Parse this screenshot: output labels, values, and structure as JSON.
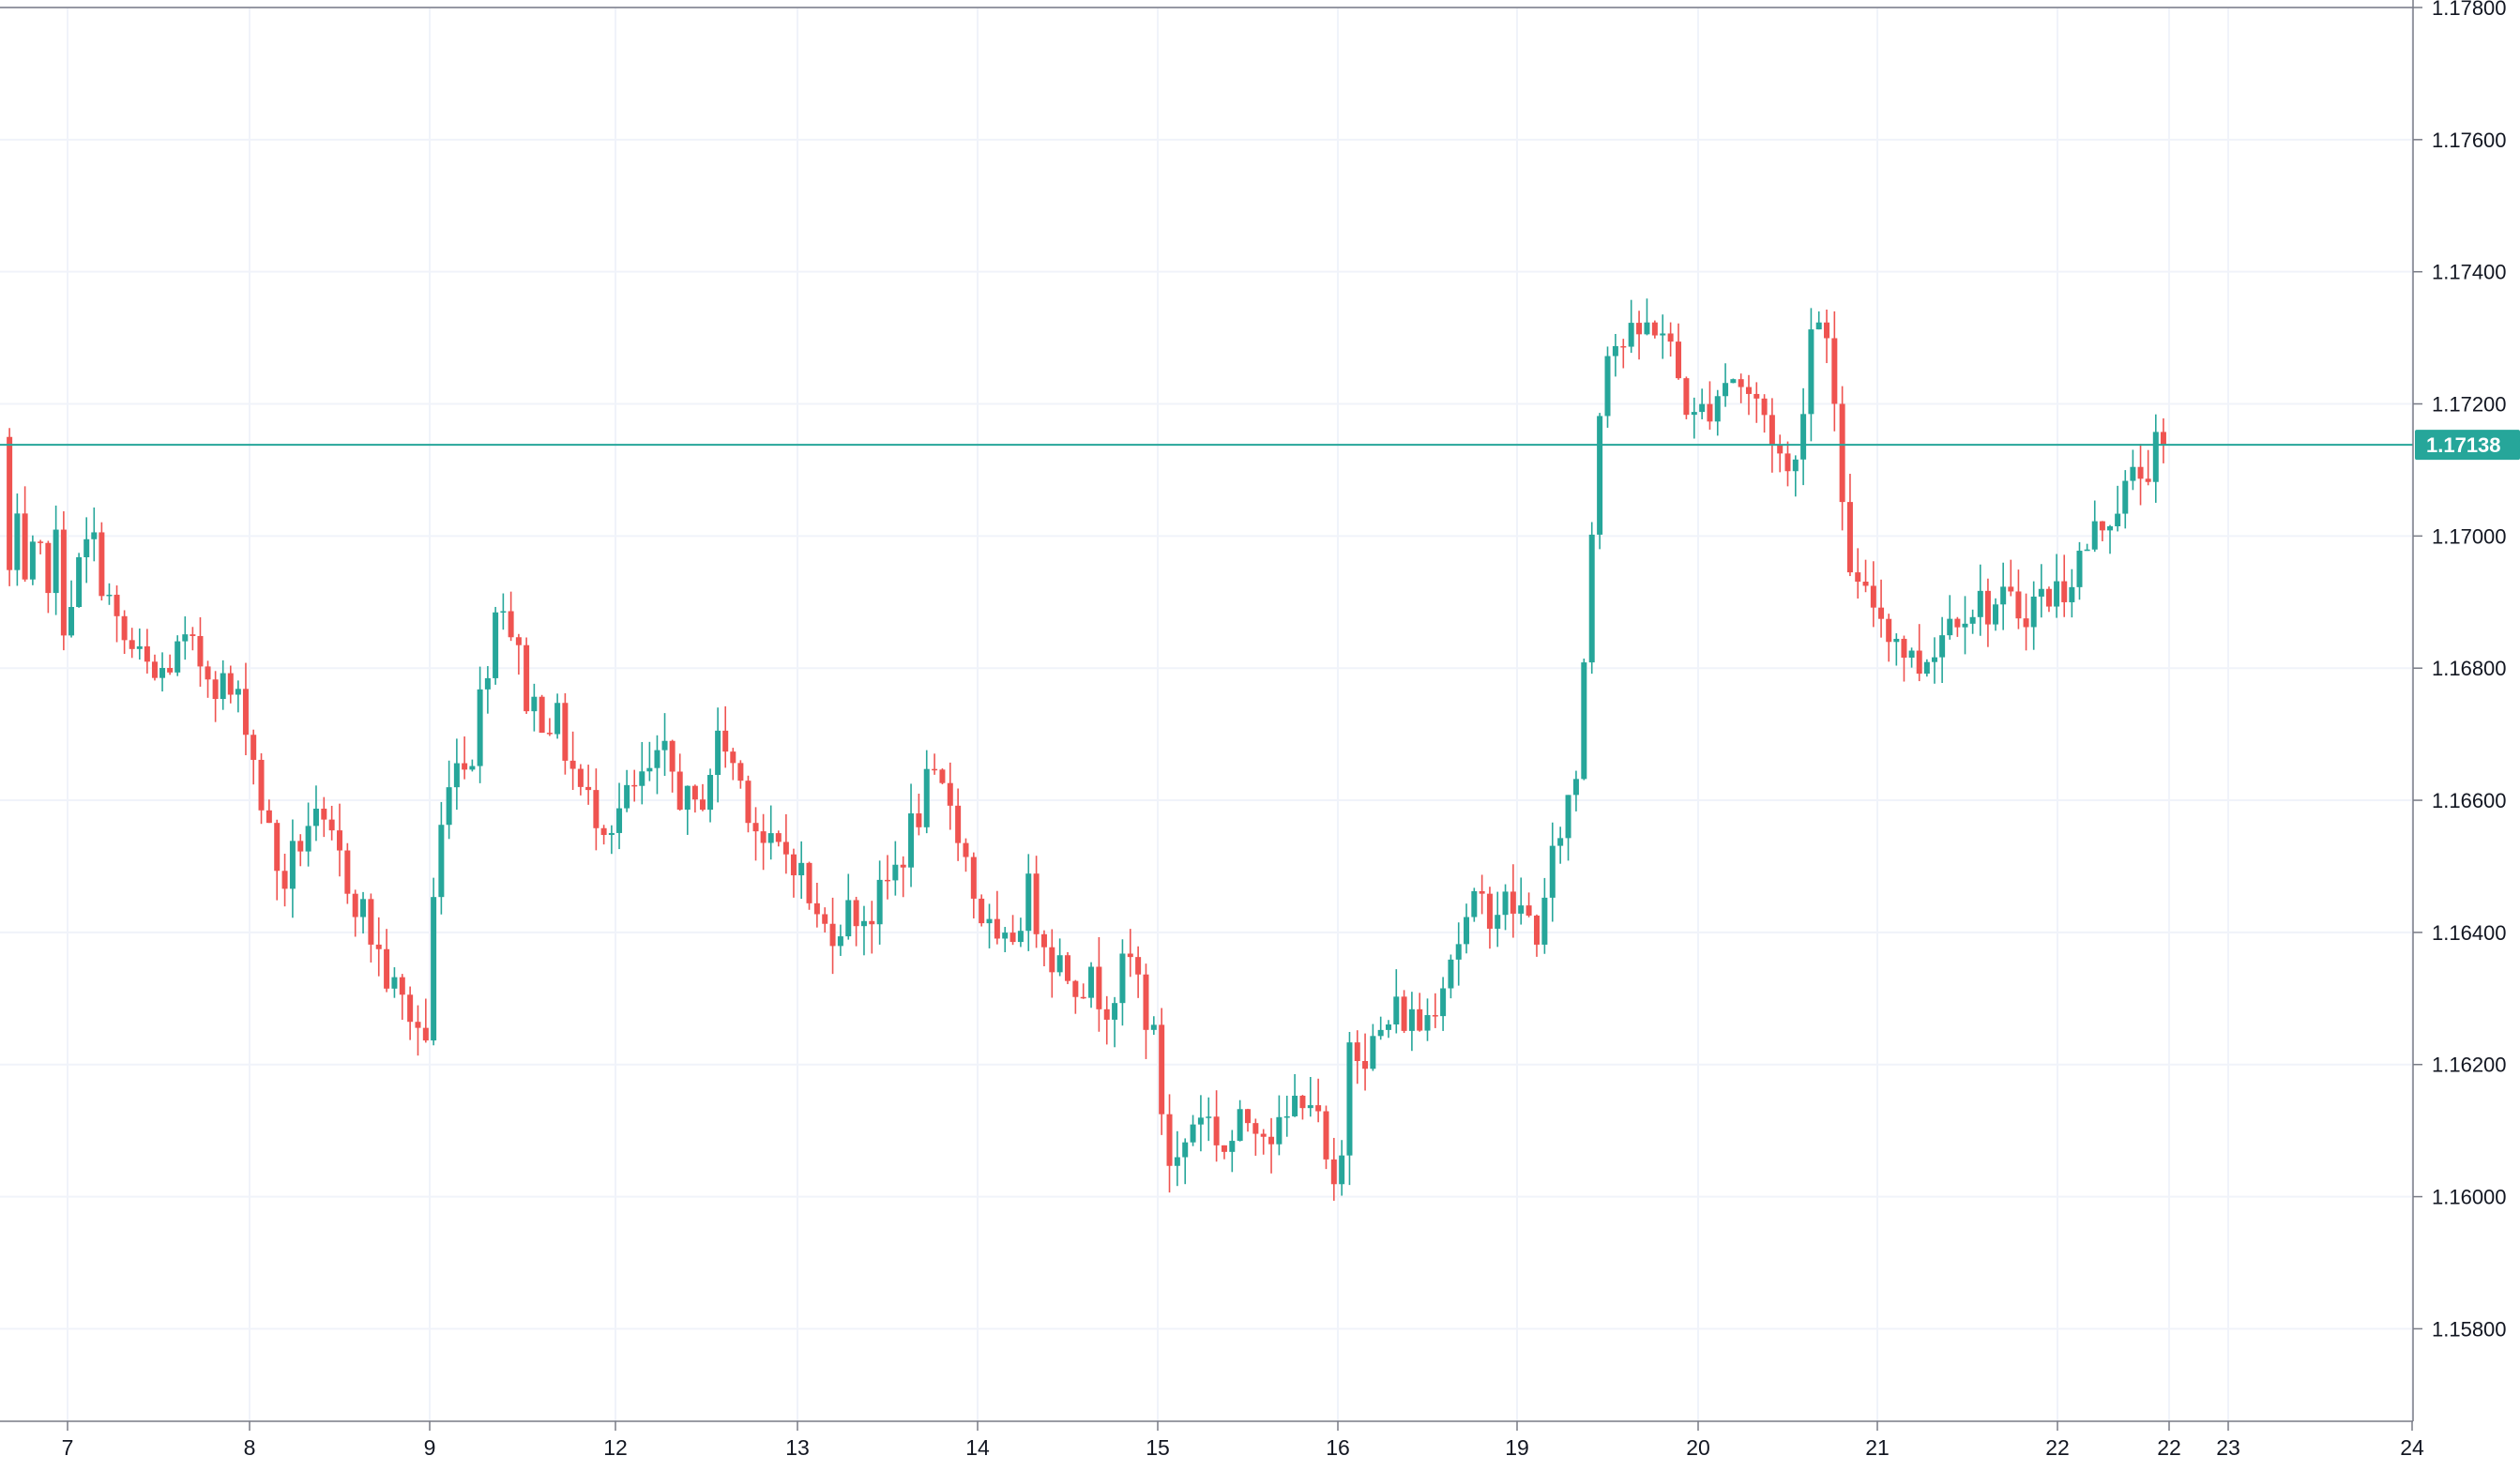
{
  "chart_data": {
    "type": "candlestick",
    "price_axis": {
      "ticks": [
        1.178,
        1.176,
        1.174,
        1.172,
        1.17,
        1.168,
        1.166,
        1.164,
        1.162,
        1.16,
        1.158
      ],
      "tick_labels": [
        "1.17800",
        "1.17600",
        "1.17400",
        "1.17200",
        "1.17000",
        "1.16800",
        "1.16600",
        "1.16400",
        "1.16200",
        "1.16000",
        "1.15800"
      ],
      "range": [
        1.1566,
        1.178
      ]
    },
    "time_axis": {
      "labels": [
        "7",
        "8",
        "9",
        "12",
        "13",
        "14",
        "15",
        "16",
        "19",
        "20",
        "21",
        "22",
        "22",
        "23",
        "24"
      ]
    },
    "current_price": {
      "value": 1.17138,
      "label": "1.17138"
    },
    "colors": {
      "up": "#26a69a",
      "down": "#ef5350",
      "grid": "#f0f3fa",
      "price_line": "#26a69a",
      "axis_text": "#131722",
      "border": "#2a2e39"
    },
    "days": [
      {
        "label": "7",
        "path": [
          [
            0.0,
            1.1715
          ],
          [
            0.1,
            1.1693
          ],
          [
            0.25,
            1.17
          ],
          [
            0.4,
            1.1689
          ],
          [
            0.55,
            1.1699
          ],
          [
            0.7,
            1.1692
          ],
          [
            0.85,
            1.17
          ],
          [
            1.0,
            1.1688
          ]
        ]
      },
      {
        "label": "8",
        "path": [
          [
            0.0,
            1.1688
          ],
          [
            0.15,
            1.17
          ],
          [
            0.3,
            1.1685
          ],
          [
            0.5,
            1.1678
          ],
          [
            0.65,
            1.1683
          ],
          [
            0.8,
            1.168
          ],
          [
            1.0,
            1.1673
          ]
        ]
      },
      {
        "label": "9",
        "path": [
          [
            0.0,
            1.1673
          ],
          [
            0.1,
            1.1658
          ],
          [
            0.2,
            1.1647
          ],
          [
            0.35,
            1.1657
          ],
          [
            0.5,
            1.1652
          ],
          [
            0.65,
            1.1643
          ],
          [
            0.8,
            1.1632
          ],
          [
            1.0,
            1.1624
          ]
        ]
      },
      {
        "label": "12",
        "path": [
          [
            0.0,
            1.1634
          ],
          [
            0.12,
            1.1665
          ],
          [
            0.25,
            1.1668
          ],
          [
            0.4,
            1.1693
          ],
          [
            0.55,
            1.1675
          ],
          [
            0.7,
            1.1672
          ],
          [
            0.85,
            1.166
          ],
          [
            1.0,
            1.1657
          ]
        ]
      },
      {
        "label": "13",
        "path": [
          [
            0.0,
            1.1657
          ],
          [
            0.15,
            1.1662
          ],
          [
            0.3,
            1.1666
          ],
          [
            0.45,
            1.1657
          ],
          [
            0.6,
            1.167
          ],
          [
            0.75,
            1.166
          ],
          [
            0.85,
            1.1652
          ],
          [
            1.0,
            1.1652
          ]
        ]
      },
      {
        "label": "14",
        "path": [
          [
            0.0,
            1.1652
          ],
          [
            0.15,
            1.164
          ],
          [
            0.3,
            1.1643
          ],
          [
            0.45,
            1.1643
          ],
          [
            0.6,
            1.1652
          ],
          [
            0.75,
            1.1662
          ],
          [
            0.88,
            1.166
          ],
          [
            1.0,
            1.1646
          ]
        ]
      },
      {
        "label": "15",
        "path": [
          [
            0.0,
            1.1646
          ],
          [
            0.15,
            1.1635
          ],
          [
            0.3,
            1.1646
          ],
          [
            0.45,
            1.1636
          ],
          [
            0.6,
            1.1633
          ],
          [
            0.75,
            1.163
          ],
          [
            0.88,
            1.1636
          ],
          [
            1.0,
            1.1623
          ]
        ]
      },
      {
        "label": "16",
        "path": [
          [
            0.0,
            1.1622
          ],
          [
            0.1,
            1.1603
          ],
          [
            0.25,
            1.1614
          ],
          [
            0.4,
            1.1607
          ],
          [
            0.55,
            1.1613
          ],
          [
            0.7,
            1.1609
          ],
          [
            0.85,
            1.1618
          ],
          [
            1.0,
            1.1599
          ]
        ]
      },
      {
        "label": "19",
        "path": [
          [
            0.0,
            1.1582
          ],
          [
            0.08,
            1.1625
          ],
          [
            0.2,
            1.1622
          ],
          [
            0.35,
            1.1628
          ],
          [
            0.5,
            1.1626
          ],
          [
            0.65,
            1.1637
          ],
          [
            0.8,
            1.1644
          ],
          [
            1.0,
            1.1644
          ]
        ]
      },
      {
        "label": "20",
        "path": [
          [
            0.0,
            1.1644
          ],
          [
            0.15,
            1.164
          ],
          [
            0.25,
            1.1655
          ],
          [
            0.35,
            1.1664
          ],
          [
            0.42,
            1.1695
          ],
          [
            0.5,
            1.173
          ],
          [
            0.65,
            1.1729
          ],
          [
            0.8,
            1.1733
          ],
          [
            1.0,
            1.1717
          ]
        ]
      },
      {
        "label": "21",
        "path": [
          [
            0.0,
            1.1717
          ],
          [
            0.2,
            1.1725
          ],
          [
            0.4,
            1.1718
          ],
          [
            0.55,
            1.1707
          ],
          [
            0.65,
            1.1732
          ],
          [
            0.75,
            1.1733
          ],
          [
            0.82,
            1.1703
          ],
          [
            0.92,
            1.169
          ],
          [
            1.0,
            1.169
          ]
        ]
      },
      {
        "label": "22",
        "path": [
          [
            0.0,
            1.169
          ],
          [
            0.15,
            1.168
          ],
          [
            0.3,
            1.169
          ],
          [
            0.5,
            1.1689
          ],
          [
            0.65,
            1.1692
          ],
          [
            0.8,
            1.1703
          ],
          [
            1.0,
            1.1714
          ]
        ]
      }
    ]
  }
}
